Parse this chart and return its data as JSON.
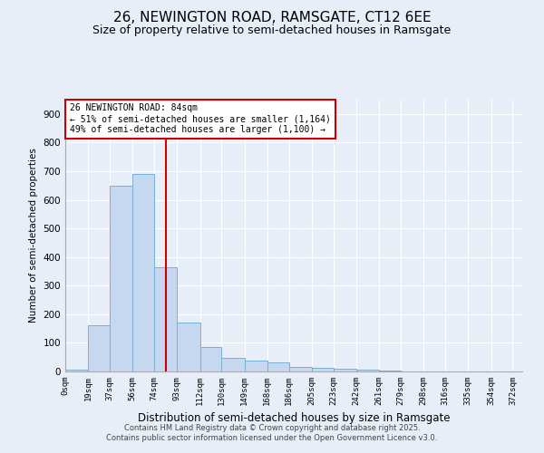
{
  "title": "26, NEWINGTON ROAD, RAMSGATE, CT12 6EE",
  "subtitle": "Size of property relative to semi-detached houses in Ramsgate",
  "xlabel": "Distribution of semi-detached houses by size in Ramsgate",
  "ylabel": "Number of semi-detached properties",
  "bin_labels": [
    "0sqm",
    "19sqm",
    "37sqm",
    "56sqm",
    "74sqm",
    "93sqm",
    "112sqm",
    "130sqm",
    "149sqm",
    "168sqm",
    "186sqm",
    "205sqm",
    "223sqm",
    "242sqm",
    "261sqm",
    "279sqm",
    "298sqm",
    "316sqm",
    "335sqm",
    "354sqm",
    "372sqm"
  ],
  "bin_edges": [
    0,
    19,
    37,
    56,
    74,
    93,
    112,
    130,
    149,
    168,
    186,
    205,
    223,
    242,
    261,
    279,
    298,
    316,
    335,
    354,
    372
  ],
  "bar_heights": [
    5,
    160,
    650,
    690,
    365,
    170,
    85,
    48,
    38,
    33,
    15,
    12,
    10,
    5,
    2,
    0,
    0,
    0,
    0,
    0
  ],
  "bar_color": "#c5d8f0",
  "bar_edge_color": "#7aafd4",
  "vline_x": 84,
  "vline_color": "#cc0000",
  "ylim": [
    0,
    950
  ],
  "yticks": [
    0,
    100,
    200,
    300,
    400,
    500,
    600,
    700,
    800,
    900
  ],
  "annotation_title": "26 NEWINGTON ROAD: 84sqm",
  "annotation_line1": "← 51% of semi-detached houses are smaller (1,164)",
  "annotation_line2": "49% of semi-detached houses are larger (1,100) →",
  "annotation_box_color": "#ffffff",
  "annotation_box_edge": "#cc0000",
  "background_color": "#e8eef8",
  "footer_line1": "Contains HM Land Registry data © Crown copyright and database right 2025.",
  "footer_line2": "Contains public sector information licensed under the Open Government Licence v3.0.",
  "grid_color": "#ffffff",
  "title_fontsize": 11,
  "subtitle_fontsize": 9
}
